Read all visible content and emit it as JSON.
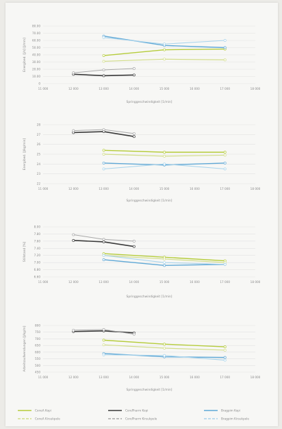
{
  "colors": {
    "background": "#f7f7f5",
    "gridline": "#e2e2e2",
    "axis_text": "#8a8a8a",
    "series": [
      "#b5cc3a",
      "#d2dd8a",
      "#3a3a3a",
      "#a8a8a8",
      "#5fa8d6",
      "#a9d4ec"
    ]
  },
  "legend": {
    "items": [
      {
        "label": "ConeA Kopi",
        "dash": "solid"
      },
      {
        "label": "ConeA Kirsukpele",
        "dash": "dash"
      },
      {
        "label": "CorePharm Kopi",
        "dash": "solid"
      },
      {
        "label": "CorePharm Kirsukpele",
        "dash": "dash"
      },
      {
        "label": "Bragpim Kopi",
        "dash": "solid"
      },
      {
        "label": "Bragpim Kirsukpele",
        "dash": "dash"
      }
    ]
  },
  "chart_data": [
    {
      "type": "line",
      "ylabel": "Energibed. [J/s] [J/mm]",
      "xlabel": "Springgeschwindigkeit [1/min]",
      "x": [
        11000,
        12000,
        13000,
        14000,
        15000,
        16000,
        17000,
        18000
      ],
      "x_tick_labels": [
        "11 000",
        "12 000",
        "13 000",
        "14 000",
        "15 000",
        "16 000",
        "17 000",
        "18 000"
      ],
      "y_tick_labels": [
        "0",
        "10.00",
        "20.00",
        "30.00",
        "40.00",
        "50.00",
        "60.00",
        "70.00",
        "80.00"
      ],
      "ylim": [
        0,
        80
      ],
      "series": [
        {
          "x": [
            13000,
            15000,
            17000
          ],
          "values": [
            39,
            47,
            48
          ]
        },
        {
          "x": [
            13000,
            15000,
            17000
          ],
          "values": [
            31,
            34,
            33
          ]
        },
        {
          "x": [
            12000,
            13000,
            14000
          ],
          "values": [
            13,
            11,
            12
          ]
        },
        {
          "x": [
            12000,
            13000,
            14000
          ],
          "values": [
            15,
            19,
            21
          ]
        },
        {
          "x": [
            13000,
            15000,
            17000
          ],
          "values": [
            66,
            53,
            50
          ]
        },
        {
          "x": [
            13000,
            15000,
            17000
          ],
          "values": [
            64,
            55,
            60
          ]
        }
      ]
    },
    {
      "type": "line",
      "ylabel": "Energibed. [J/kg/min]",
      "xlabel": "Springgeschwindigkeit [1/min]",
      "x": [
        11000,
        12000,
        13000,
        14000,
        15000,
        16000,
        17000,
        18000
      ],
      "x_tick_labels": [
        "11 000",
        "12 000",
        "13 000",
        "14 000",
        "15 000",
        "16 000",
        "17 000",
        "18 000"
      ],
      "y_tick_labels": [
        "22",
        "23",
        "24",
        "25",
        "26",
        "27",
        "28"
      ],
      "ylim": [
        22,
        28
      ],
      "series": [
        {
          "x": [
            13000,
            15000,
            17000
          ],
          "values": [
            25.4,
            25.2,
            25.2
          ]
        },
        {
          "x": [
            13000,
            15000,
            17000
          ],
          "values": [
            25.0,
            24.8,
            24.9
          ]
        },
        {
          "x": [
            12000,
            13000,
            14000
          ],
          "values": [
            27.2,
            27.3,
            26.8
          ]
        },
        {
          "x": [
            12000,
            13000,
            14000
          ],
          "values": [
            27.4,
            27.5,
            27.1
          ]
        },
        {
          "x": [
            13000,
            15000,
            17000
          ],
          "values": [
            24.1,
            23.9,
            24.1
          ]
        },
        {
          "x": [
            13000,
            15000,
            17000
          ],
          "values": [
            23.5,
            24.0,
            23.5
          ]
        }
      ]
    },
    {
      "type": "line",
      "ylabel": "Stillstand [%]",
      "xlabel": "Springgeschwindigkeit [1/min]",
      "x": [
        11000,
        12000,
        13000,
        14000,
        15000,
        16000,
        17000,
        18000
      ],
      "x_tick_labels": [
        "11 000",
        "12 000",
        "13 000",
        "14 000",
        "15 000",
        "16 000",
        "17 000",
        "18 000"
      ],
      "y_tick_labels": [
        "6.60",
        "6.80",
        "7.00",
        "7.20",
        "7.40",
        "7.60",
        "7.80",
        "8.00"
      ],
      "ylim": [
        6.6,
        8.0
      ],
      "series": [
        {
          "x": [
            13000,
            15000,
            17000
          ],
          "values": [
            7.25,
            7.15,
            7.05
          ]
        },
        {
          "x": [
            13000,
            15000,
            17000
          ],
          "values": [
            7.2,
            7.1,
            7.0
          ]
        },
        {
          "x": [
            12000,
            13000,
            14000
          ],
          "values": [
            7.62,
            7.58,
            7.45
          ]
        },
        {
          "x": [
            12000,
            13000,
            14000
          ],
          "values": [
            7.78,
            7.65,
            7.6
          ]
        },
        {
          "x": [
            13000,
            15000,
            17000
          ],
          "values": [
            7.08,
            6.92,
            6.95
          ]
        },
        {
          "x": [
            13000,
            15000,
            17000
          ],
          "values": [
            7.2,
            7.0,
            6.95
          ]
        }
      ]
    },
    {
      "type": "line",
      "ylabel": "Arbeitsaufwendungen [J/kg/m]",
      "xlabel": "Springgeschwindigkeit [1/min]",
      "x": [
        11000,
        12000,
        13000,
        14000,
        15000,
        16000,
        17000,
        18000
      ],
      "x_tick_labels": [
        "11 000",
        "12 000",
        "13 000",
        "14 000",
        "15 000",
        "16 000",
        "17 000",
        "18 000"
      ],
      "y_tick_labels": [
        "450",
        "500",
        "550",
        "600",
        "650",
        "700",
        "750",
        "800"
      ],
      "ylim": [
        450,
        800
      ],
      "series": [
        {
          "x": [
            13000,
            15000,
            17000
          ],
          "values": [
            690,
            660,
            640
          ]
        },
        {
          "x": [
            13000,
            15000,
            17000
          ],
          "values": [
            655,
            630,
            615
          ]
        },
        {
          "x": [
            12000,
            13000,
            14000
          ],
          "values": [
            755,
            760,
            745
          ]
        },
        {
          "x": [
            12000,
            13000,
            14000
          ],
          "values": [
            765,
            770,
            735
          ]
        },
        {
          "x": [
            13000,
            15000,
            17000
          ],
          "values": [
            590,
            565,
            560
          ]
        },
        {
          "x": [
            13000,
            15000,
            17000
          ],
          "values": [
            580,
            575,
            540
          ]
        }
      ]
    }
  ]
}
